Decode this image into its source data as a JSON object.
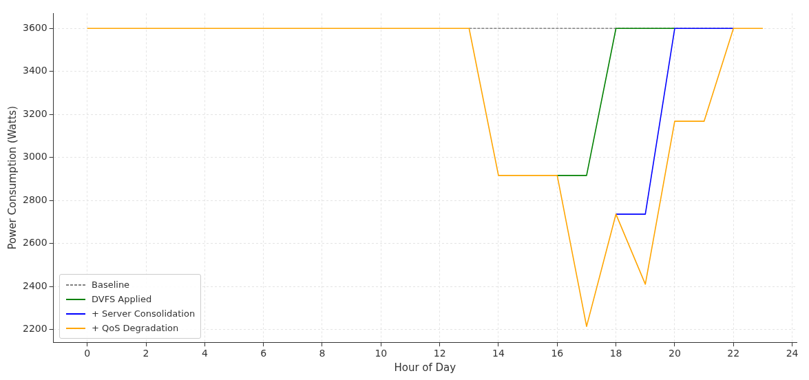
{
  "chart_data": {
    "type": "line",
    "xlabel": "Hour of Day",
    "ylabel": "Power Consumption (Watts)",
    "x": [
      0,
      1,
      2,
      3,
      4,
      5,
      6,
      7,
      8,
      9,
      10,
      11,
      12,
      13,
      14,
      15,
      16,
      17,
      18,
      19,
      20,
      21,
      22,
      23
    ],
    "series": [
      {
        "name": "Baseline",
        "color": "#808080",
        "line_style": "dashed",
        "values": [
          null,
          null,
          null,
          null,
          null,
          null,
          null,
          null,
          null,
          null,
          null,
          null,
          null,
          3600,
          3600,
          3600,
          3600,
          3600,
          3600,
          3600,
          3600,
          3600,
          3600,
          null
        ]
      },
      {
        "name": "DVFS Applied",
        "color": "#008000",
        "line_style": "solid",
        "values": [
          null,
          null,
          null,
          null,
          null,
          null,
          null,
          null,
          null,
          null,
          null,
          null,
          null,
          null,
          null,
          null,
          2916,
          2916,
          3600,
          3600,
          3600,
          null,
          null,
          null
        ]
      },
      {
        "name": "+ Server Consolidation",
        "color": "#0000ff",
        "line_style": "solid",
        "values": [
          null,
          null,
          null,
          null,
          null,
          null,
          null,
          null,
          null,
          null,
          null,
          null,
          null,
          null,
          null,
          null,
          null,
          null,
          2736,
          2736,
          3600,
          3600,
          3600,
          null
        ]
      },
      {
        "name": "+ QoS Degradation",
        "color": "#ffa500",
        "line_style": "solid",
        "values": [
          3600,
          3600,
          3600,
          3600,
          3600,
          3600,
          3600,
          3600,
          3600,
          3600,
          3600,
          3600,
          3600,
          3600,
          2916,
          2916,
          2916,
          2214,
          2736,
          2410,
          3168,
          3168,
          3600,
          3600
        ]
      }
    ],
    "xlim": [
      -1.15,
      24.15
    ],
    "xticks": [
      0,
      2,
      4,
      6,
      8,
      10,
      12,
      14,
      16,
      18,
      20,
      22,
      24
    ],
    "ylim": [
      2140,
      3670
    ],
    "yticks": [
      2200,
      2400,
      2600,
      2800,
      3000,
      3200,
      3400,
      3600
    ],
    "grid": true,
    "legend": "bottom left",
    "marker": "none"
  }
}
